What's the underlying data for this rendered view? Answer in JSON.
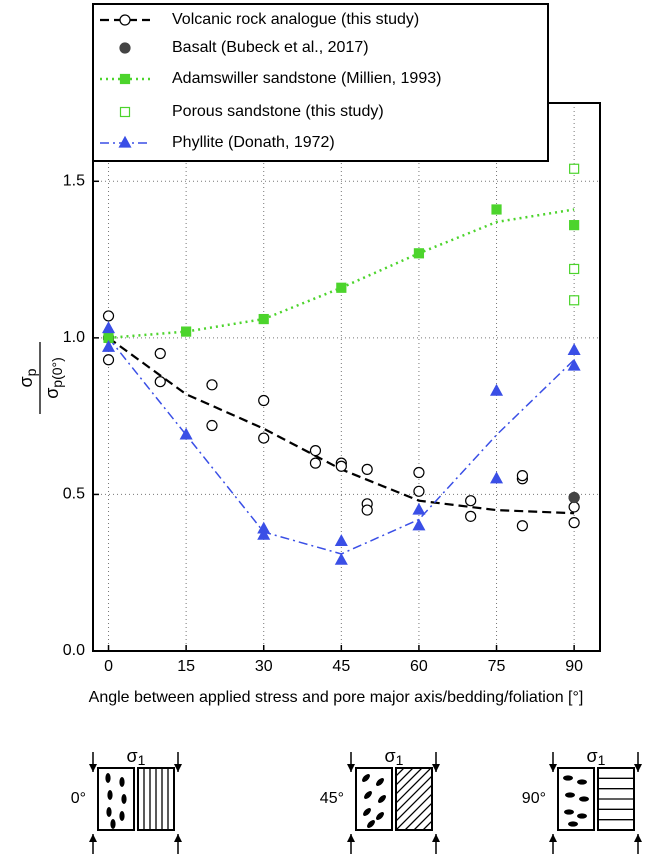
{
  "chart_data": {
    "type": "scatter-line",
    "x_label": "Angle between applied stress and pore major axis/bedding/foliation [°]",
    "y_label": {
      "numerator": {
        "symbol": "σ",
        "sub": "p"
      },
      "denominator": {
        "symbol": "σ",
        "sub": "p(0°)"
      }
    },
    "xlim": [
      -3,
      95
    ],
    "ylim": [
      0,
      1.75
    ],
    "xticks": [
      0,
      15,
      30,
      45,
      60,
      75,
      90
    ],
    "yticks": [
      {
        "value": 0,
        "label": "0.0"
      },
      0.5,
      {
        "value": 1,
        "label": "1.0"
      },
      1.5
    ],
    "grid": true,
    "legend": "top",
    "series": [
      {
        "name": "Volcanic rock analogue (this study)",
        "color": "#000000",
        "marker": "circle",
        "filled": false,
        "linestyle": "dashed",
        "x": [
          0,
          15,
          30,
          45,
          60,
          75,
          90
        ],
        "values": [
          1.0,
          0.82,
          0.71,
          0.58,
          0.48,
          0.45,
          0.44
        ],
        "points": {
          "x": [
            0,
            0,
            0,
            10,
            10,
            20,
            20,
            30,
            30,
            40,
            40,
            45,
            45,
            50,
            50,
            50,
            60,
            60,
            70,
            70,
            80,
            80,
            80,
            90,
            90,
            90
          ],
          "y": [
            1.07,
            0.93,
            1.0,
            0.95,
            0.86,
            0.85,
            0.72,
            0.8,
            0.68,
            0.64,
            0.6,
            0.6,
            0.59,
            0.58,
            0.47,
            0.45,
            0.57,
            0.51,
            0.48,
            0.43,
            0.55,
            0.56,
            0.4,
            0.49,
            0.46,
            0.41
          ]
        }
      },
      {
        "name": "Basalt (Bubeck et al., 2017)",
        "color": "#444444",
        "marker": "circle",
        "filled": true,
        "points": {
          "x": [
            0,
            90
          ],
          "y": [
            1.0,
            0.49
          ]
        }
      },
      {
        "name": "Adamswiller sandstone (Millien, 1993)",
        "color": "#4cd42c",
        "marker": "square",
        "filled": true,
        "linestyle": "dotted",
        "x": [
          0,
          15,
          30,
          45,
          60,
          75,
          90
        ],
        "values": [
          1.0,
          1.02,
          1.06,
          1.16,
          1.27,
          1.37,
          1.41
        ],
        "points": {
          "x": [
            0,
            15,
            30,
            45,
            60,
            75,
            90
          ],
          "y": [
            1.0,
            1.02,
            1.06,
            1.16,
            1.27,
            1.41,
            1.36
          ]
        }
      },
      {
        "name": "Porous sandstone (this study)",
        "color": "#4cd42c",
        "marker": "square",
        "filled": false,
        "points": {
          "x": [
            90,
            90,
            90
          ],
          "y": [
            1.54,
            1.22,
            1.12
          ]
        }
      },
      {
        "name": "Phyllite (Donath, 1972)",
        "color": "#3a4fe6",
        "marker": "triangle",
        "filled": true,
        "linestyle": "dashdot",
        "x": [
          0,
          15,
          30,
          45,
          60,
          75,
          90
        ],
        "values": [
          1.0,
          0.69,
          0.38,
          0.31,
          0.42,
          0.69,
          0.93
        ],
        "points": {
          "x": [
            0,
            0,
            15,
            30,
            30,
            45,
            45,
            60,
            60,
            75,
            75,
            90,
            90
          ],
          "y": [
            1.03,
            0.97,
            0.69,
            0.39,
            0.37,
            0.35,
            0.29,
            0.45,
            0.4,
            0.83,
            0.55,
            0.96,
            0.91
          ]
        }
      }
    ]
  },
  "schematics": {
    "stress": {
      "symbol": "σ",
      "sub": "1"
    },
    "panels": [
      {
        "angle": "0°"
      },
      {
        "angle": "45°"
      },
      {
        "angle": "90°"
      }
    ]
  }
}
